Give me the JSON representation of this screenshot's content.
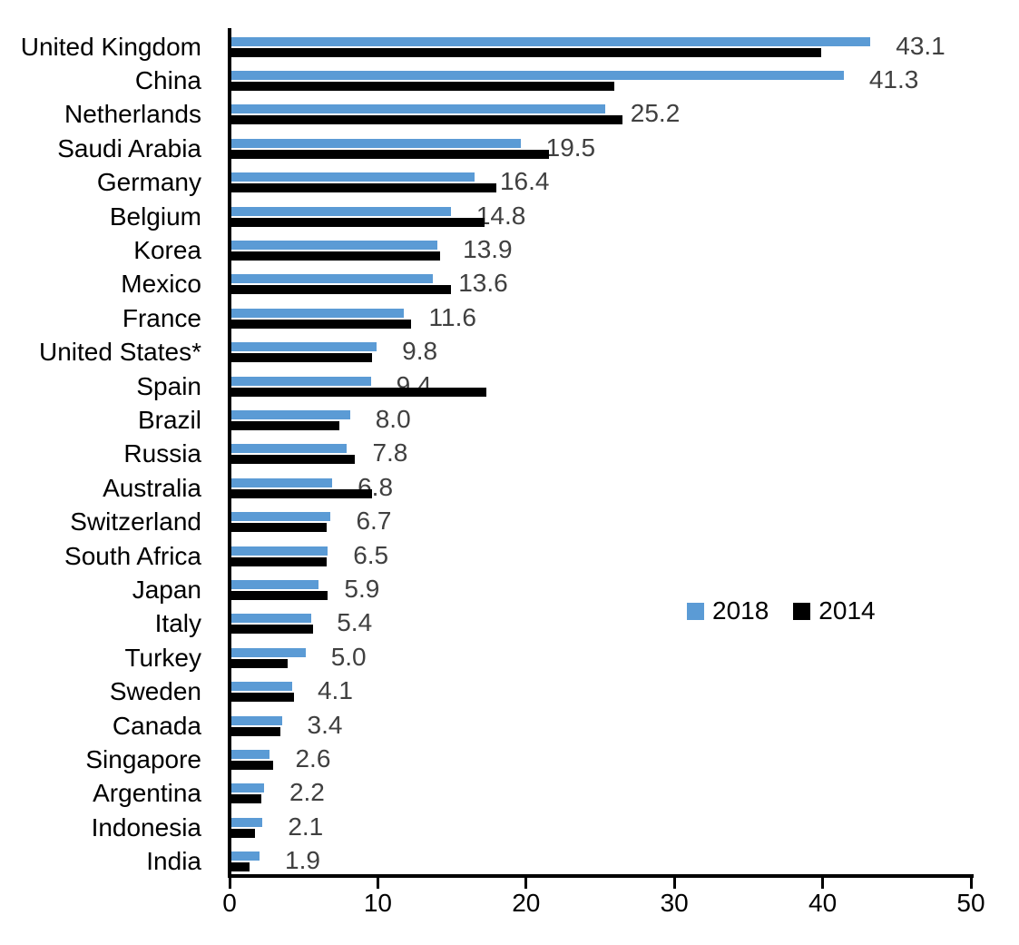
{
  "chart_data": {
    "type": "bar",
    "orientation": "horizontal",
    "title": "",
    "xlabel": "",
    "ylabel": "",
    "categories": [
      "United Kingdom",
      "China",
      "Netherlands",
      "Saudi Arabia",
      "Germany",
      "Belgium",
      "Korea",
      "Mexico",
      "France",
      "United States*",
      "Spain",
      "Brazil",
      "Russia",
      "Australia",
      "Switzerland",
      "South Africa",
      "Japan",
      "Italy",
      "Turkey",
      "Sweden",
      "Canada",
      "Singapore",
      "Argentina",
      "Indonesia",
      "India"
    ],
    "series": [
      {
        "name": "2018",
        "color": "#5B9BD5",
        "values": [
          43.1,
          41.3,
          25.2,
          19.5,
          16.4,
          14.8,
          13.9,
          13.6,
          11.6,
          9.8,
          9.4,
          8.0,
          7.8,
          6.8,
          6.7,
          6.5,
          5.9,
          5.4,
          5.0,
          4.1,
          3.4,
          2.6,
          2.2,
          2.1,
          1.9
        ]
      },
      {
        "name": "2014",
        "color": "#000000",
        "values": [
          39.8,
          25.8,
          26.4,
          21.4,
          17.9,
          17.1,
          14.1,
          14.8,
          12.1,
          9.5,
          17.2,
          7.3,
          8.3,
          9.5,
          6.4,
          6.4,
          6.5,
          5.5,
          3.8,
          4.2,
          3.3,
          2.8,
          2.0,
          1.6,
          1.2
        ]
      }
    ],
    "data_labels": [
      "43.1",
      "41.3",
      "25.2",
      "19.5",
      "16.4",
      "14.8",
      "13.9",
      "13.6",
      "11.6",
      "9.8",
      "9.4",
      "8.0",
      "7.8",
      "6.8",
      "6.7",
      "6.5",
      "5.9",
      "5.4",
      "5.0",
      "4.1",
      "3.4",
      "2.6",
      "2.2",
      "2.1",
      "1.9"
    ],
    "data_labels_series": "2018",
    "data_label_color": "#404040",
    "x_ticks": [
      "0",
      "10",
      "20",
      "30",
      "40",
      "50"
    ],
    "xlim": [
      0,
      50
    ],
    "grid": false,
    "axis_color": "#000000",
    "legend": {
      "position": "middle-right",
      "entries": [
        {
          "label": "2018",
          "color": "#5B9BD5"
        },
        {
          "label": "2014",
          "color": "#000000"
        }
      ]
    }
  }
}
